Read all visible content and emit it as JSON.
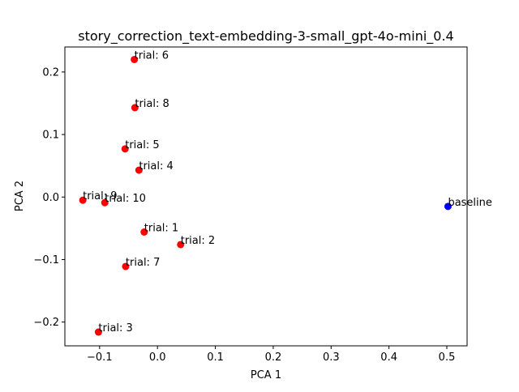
{
  "chart_data": {
    "type": "scatter",
    "title": "story_correction_text-embedding-3-small_gpt-4o-mini_0.4",
    "xlabel": "PCA 1",
    "ylabel": "PCA 2",
    "xlim": [
      -0.16,
      0.535
    ],
    "ylim": [
      -0.238,
      0.24
    ],
    "x_ticks": [
      -0.1,
      0.0,
      0.1,
      0.2,
      0.3,
      0.4,
      0.5
    ],
    "x_tick_labels": [
      "−0.1",
      "0.0",
      "0.1",
      "0.2",
      "0.3",
      "0.4",
      "0.5"
    ],
    "y_ticks": [
      -0.2,
      -0.1,
      0.0,
      0.1,
      0.2
    ],
    "y_tick_labels": [
      "−0.2",
      "−0.1",
      "0.0",
      "0.1",
      "0.2"
    ],
    "grid": false,
    "legend": "none",
    "points": [
      {
        "label": "trial: 6",
        "x": -0.04,
        "y": 0.22,
        "color": "#ff0000"
      },
      {
        "label": "trial: 8",
        "x": -0.039,
        "y": 0.143,
        "color": "#ff0000"
      },
      {
        "label": "trial: 5",
        "x": -0.056,
        "y": 0.077,
        "color": "#ff0000"
      },
      {
        "label": "trial: 4",
        "x": -0.032,
        "y": 0.043,
        "color": "#ff0000"
      },
      {
        "label": "trial: 9",
        "x": -0.129,
        "y": -0.005,
        "color": "#ff0000"
      },
      {
        "label": "trial: 10",
        "x": -0.091,
        "y": -0.009,
        "color": "#ff0000"
      },
      {
        "label": "trial: 1",
        "x": -0.023,
        "y": -0.056,
        "color": "#ff0000"
      },
      {
        "label": "trial: 2",
        "x": 0.04,
        "y": -0.076,
        "color": "#ff0000"
      },
      {
        "label": "trial: 7",
        "x": -0.055,
        "y": -0.111,
        "color": "#ff0000"
      },
      {
        "label": "trial: 3",
        "x": -0.102,
        "y": -0.216,
        "color": "#ff0000"
      },
      {
        "label": "baseline",
        "x": 0.502,
        "y": -0.015,
        "color": "#0000ff"
      }
    ]
  }
}
